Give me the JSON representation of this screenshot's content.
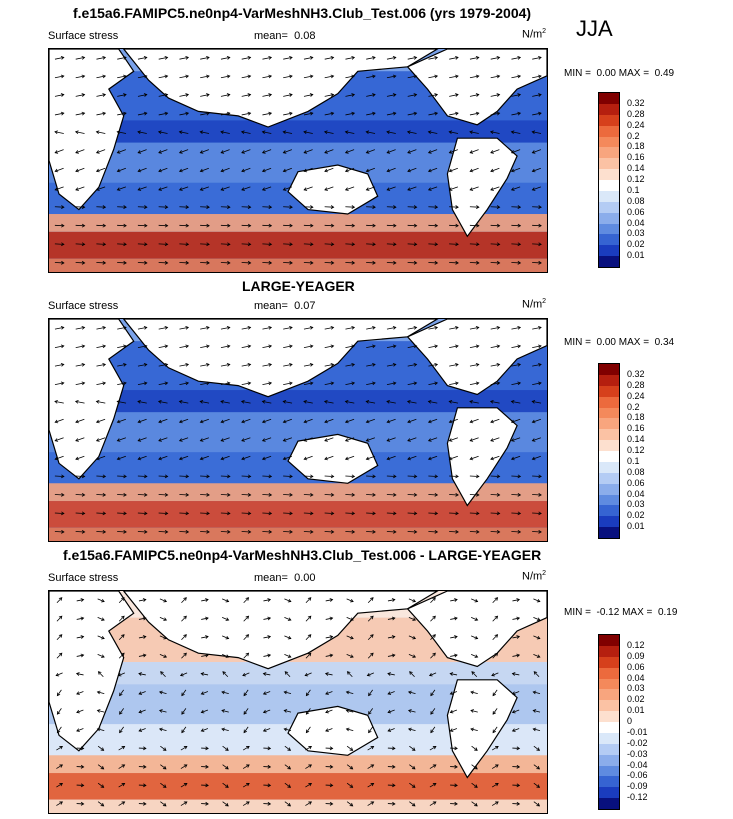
{
  "season": "JJA",
  "panels": [
    {
      "title": "f.e15a6.FAMIPC5.ne0np4-VarMeshNH3.Club_Test.006 (yrs 1979-2004)",
      "variable": "Surface stress",
      "mean_label": "mean=",
      "mean_value": "0.08",
      "units": "N/m",
      "units_sup": "2",
      "min_label": "MIN =",
      "min_value": "0.00",
      "max_label": "MAX =",
      "max_value": "0.49",
      "colorbar": {
        "labels": [
          "0.32",
          "0.28",
          "0.24",
          "0.2",
          "0.18",
          "0.16",
          "0.14",
          "0.12",
          "0.1",
          "0.08",
          "0.06",
          "0.04",
          "0.03",
          "0.02",
          "0.01"
        ],
        "colors": [
          "#800000",
          "#b51f0f",
          "#d6401c",
          "#ec6a3d",
          "#f4895b",
          "#f8a57e",
          "#fbc2a4",
          "#fde0cf",
          "#ffffff",
          "#dae8f9",
          "#b4ccf4",
          "#8badeb",
          "#5f8be0",
          "#3664d2",
          "#1a3cbe",
          "#08107e"
        ]
      }
    },
    {
      "title": "LARGE-YEAGER",
      "variable": "Surface stress",
      "mean_label": "mean=",
      "mean_value": "0.07",
      "units": "N/m",
      "units_sup": "2",
      "min_label": "MIN =",
      "min_value": "0.00",
      "max_label": "MAX =",
      "max_value": "0.34",
      "colorbar": {
        "labels": [
          "0.32",
          "0.28",
          "0.24",
          "0.2",
          "0.18",
          "0.16",
          "0.14",
          "0.12",
          "0.1",
          "0.08",
          "0.06",
          "0.04",
          "0.03",
          "0.02",
          "0.01"
        ],
        "colors": [
          "#800000",
          "#b51f0f",
          "#d6401c",
          "#ec6a3d",
          "#f4895b",
          "#f8a57e",
          "#fbc2a4",
          "#fde0cf",
          "#ffffff",
          "#dae8f9",
          "#b4ccf4",
          "#8badeb",
          "#5f8be0",
          "#3664d2",
          "#1a3cbe",
          "#08107e"
        ]
      }
    },
    {
      "title": "f.e15a6.FAMIPC5.ne0np4-VarMeshNH3.Club_Test.006 - LARGE-YEAGER",
      "variable": "Surface stress",
      "mean_label": "mean=",
      "mean_value": "0.00",
      "units": "N/m",
      "units_sup": "2",
      "min_label": "MIN =",
      "min_value": "-0.12",
      "max_label": "MAX =",
      "max_value": "0.19",
      "colorbar": {
        "labels": [
          "0.12",
          "0.09",
          "0.06",
          "0.04",
          "0.03",
          "0.02",
          "0.01",
          "0",
          "-0.01",
          "-0.02",
          "-0.03",
          "-0.04",
          "-0.06",
          "-0.09",
          "-0.12"
        ],
        "colors": [
          "#800000",
          "#b51f0f",
          "#d6401c",
          "#ec6a3d",
          "#f4895b",
          "#f8a57e",
          "#fbc2a4",
          "#fde0cf",
          "#ffffff",
          "#dae8f9",
          "#b4ccf4",
          "#8badeb",
          "#5f8be0",
          "#3664d2",
          "#1a3cbe",
          "#08107e"
        ]
      }
    }
  ]
}
